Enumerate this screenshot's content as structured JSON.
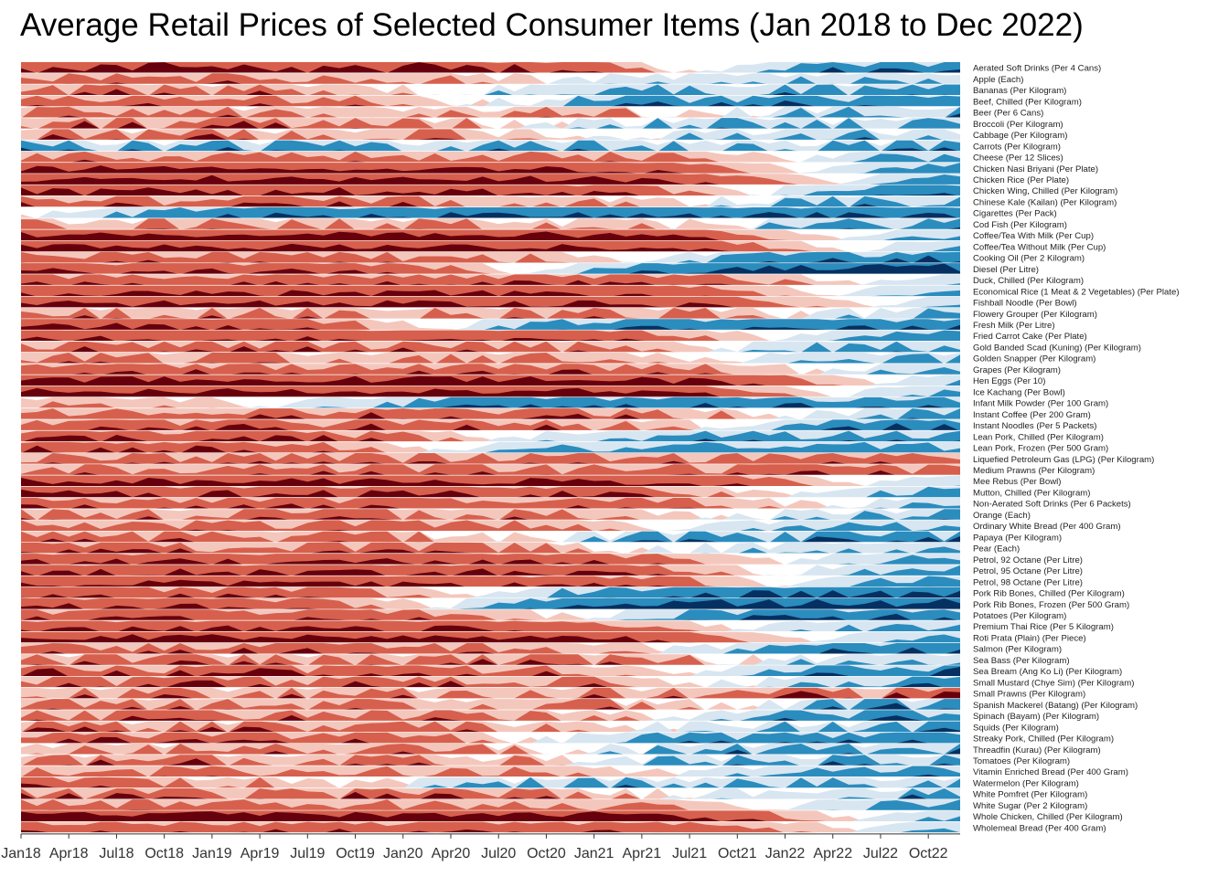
{
  "chart_data": {
    "type": "horizon",
    "title": "Average Retail Prices of Selected Consumer Items (Jan 2018 to Dec 2022)",
    "xlabel": "",
    "ylabel": "",
    "x_ticks": [
      "Jan18",
      "Apr18",
      "Jul18",
      "Oct18",
      "Jan19",
      "Apr19",
      "Jul19",
      "Oct19",
      "Jan20",
      "Apr20",
      "Jul20",
      "Oct20",
      "Jan21",
      "Apr21",
      "Jul21",
      "Oct21",
      "Jan22",
      "Apr22",
      "Jul22",
      "Oct22"
    ],
    "months": 60,
    "band_colors": {
      "neg3": "#67000d",
      "neg2": "#d6604d",
      "neg1": "#f4c7bd",
      "pos1": "#d8e6f1",
      "pos2": "#2b8cbe",
      "pos3": "#053061"
    },
    "series": [
      {
        "name": "Aerated Soft Drinks (Per 4 Cans)",
        "transition": 0.7,
        "start": 2.6,
        "end": 2.2,
        "noise": 0.6
      },
      {
        "name": "Apple (Each)",
        "transition": 0.55,
        "start": 1.8,
        "end": 1.2,
        "noise": 0.6
      },
      {
        "name": "Bananas (Per Kilogram)",
        "transition": 0.45,
        "start": 1.7,
        "end": 1.5,
        "noise": 0.9
      },
      {
        "name": "Beef, Chilled (Per Kilogram)",
        "transition": 0.5,
        "start": 2.0,
        "end": 2.1,
        "noise": 0.7
      },
      {
        "name": "Beer (Per 6 Cans)",
        "transition": 0.75,
        "start": 1.4,
        "end": 1.6,
        "noise": 0.9
      },
      {
        "name": "Broccoli (Per Kilogram)",
        "transition": 0.55,
        "start": 1.9,
        "end": 1.4,
        "noise": 1.0
      },
      {
        "name": "Cabbage (Per Kilogram)",
        "transition": 0.6,
        "start": 1.6,
        "end": 1.3,
        "noise": 1.0
      },
      {
        "name": "Carrots (Per Kilogram)",
        "transition": 0.1,
        "start": -1.6,
        "end": 1.4,
        "noise": 1.0
      },
      {
        "name": "Cheese (Per 12 Slices)",
        "transition": 0.82,
        "start": 1.7,
        "end": 1.8,
        "noise": 0.6
      },
      {
        "name": "Chicken Nasi Briyani (Per Plate)",
        "transition": 0.82,
        "start": 2.5,
        "end": 2.0,
        "noise": 0.3
      },
      {
        "name": "Chicken Rice (Per Plate)",
        "transition": 0.85,
        "start": 2.6,
        "end": 2.1,
        "noise": 0.3
      },
      {
        "name": "Chicken Wing, Chilled (Per Kilogram)",
        "transition": 0.78,
        "start": 2.4,
        "end": 2.4,
        "noise": 0.4
      },
      {
        "name": "Chinese Kale (Kailan) (Per Kilogram)",
        "transition": 0.72,
        "start": 1.8,
        "end": 1.8,
        "noise": 0.8
      },
      {
        "name": "Cigarettes (Per Pack)",
        "transition": 0.05,
        "start": 1.0,
        "end": 2.2,
        "noise": 0.4
      },
      {
        "name": "Cod Fish (Per Kilogram)",
        "transition": 0.75,
        "start": 1.3,
        "end": 1.8,
        "noise": 0.9
      },
      {
        "name": "Coffee/Tea With Milk (Per Cup)",
        "transition": 0.85,
        "start": 2.6,
        "end": 1.8,
        "noise": 0.3
      },
      {
        "name": "Coffee/Tea Without Milk (Per Cup)",
        "transition": 0.86,
        "start": 2.5,
        "end": 1.6,
        "noise": 0.3
      },
      {
        "name": "Cooking Oil (Per 2 Kilogram)",
        "transition": 0.68,
        "start": 1.8,
        "end": 2.2,
        "noise": 0.6
      },
      {
        "name": "Diesel (Per Litre)",
        "transition": 0.55,
        "start": 2.2,
        "end": 2.6,
        "noise": 0.4
      },
      {
        "name": "Duck, Chilled (Per Kilogram)",
        "transition": 0.88,
        "start": 2.0,
        "end": 1.4,
        "noise": 0.5
      },
      {
        "name": "Economical Rice (1 Meat & 2 Vegetables) (Per Plate)",
        "transition": 0.85,
        "start": 2.3,
        "end": 2.0,
        "noise": 0.3
      },
      {
        "name": "Fishball Noodle (Per Bowl)",
        "transition": 0.88,
        "start": 2.4,
        "end": 1.5,
        "noise": 0.3
      },
      {
        "name": "Flowery Grouper (Per Kilogram)",
        "transition": 0.86,
        "start": 1.6,
        "end": 2.0,
        "noise": 0.9
      },
      {
        "name": "Fresh Milk (Per Litre)",
        "transition": 0.44,
        "start": 2.3,
        "end": 2.1,
        "noise": 0.4
      },
      {
        "name": "Fried Carrot Cake (Per Plate)",
        "transition": 0.8,
        "start": 2.2,
        "end": 2.0,
        "noise": 0.3
      },
      {
        "name": "Gold Banded Scad (Kuning) (Per Kilogram)",
        "transition": 0.72,
        "start": 1.9,
        "end": 1.8,
        "noise": 0.7
      },
      {
        "name": "Golden Snapper (Per Kilogram)",
        "transition": 0.72,
        "start": 1.5,
        "end": 1.5,
        "noise": 0.8
      },
      {
        "name": "Grapes (Per Kilogram)",
        "transition": 0.85,
        "start": 2.0,
        "end": 1.8,
        "noise": 0.6
      },
      {
        "name": "Hen Eggs (Per 10)",
        "transition": 0.9,
        "start": 2.6,
        "end": 2.0,
        "noise": 0.3
      },
      {
        "name": "Ice Kachang (Per Bowl)",
        "transition": 0.85,
        "start": 2.6,
        "end": 1.8,
        "noise": 0.3
      },
      {
        "name": "Infant Milk Powder (Per 100 Gram)",
        "transition": 0.3,
        "start": 1.2,
        "end": 2.0,
        "noise": 0.5
      },
      {
        "name": "Instant Coffee (Per 200 Gram)",
        "transition": 0.82,
        "start": 2.0,
        "end": 2.0,
        "noise": 0.7
      },
      {
        "name": "Instant Noodles (Per 5 Packets)",
        "transition": 0.75,
        "start": 2.0,
        "end": 2.2,
        "noise": 0.7
      },
      {
        "name": "Lean Pork, Chilled (Per Kilogram)",
        "transition": 0.5,
        "start": 2.2,
        "end": 1.8,
        "noise": 0.6
      },
      {
        "name": "Lean Pork, Frozen (Per 500 Gram)",
        "transition": 0.42,
        "start": 2.3,
        "end": 1.6,
        "noise": 0.5
      },
      {
        "name": "Liquefied Petroleum Gas (LPG) (Per Kilogram)",
        "transition": 0.93,
        "start": 1.7,
        "end": -2.0,
        "noise": 0.6
      },
      {
        "name": "Medium Prawns (Per Kilogram)",
        "transition": 0.9,
        "start": 1.8,
        "end": -1.8,
        "noise": 0.7
      },
      {
        "name": "Mee Rebus (Per Bowl)",
        "transition": 0.88,
        "start": 2.5,
        "end": 1.8,
        "noise": 0.3
      },
      {
        "name": "Mutton, Chilled (Per Kilogram)",
        "transition": 0.8,
        "start": 2.3,
        "end": 1.8,
        "noise": 0.5
      },
      {
        "name": "Non-Aerated Soft Drinks (Per 6 Packets)",
        "transition": 0.85,
        "start": 2.0,
        "end": 1.8,
        "noise": 0.5
      },
      {
        "name": "Orange (Each)",
        "transition": 0.75,
        "start": 1.6,
        "end": 1.5,
        "noise": 0.8
      },
      {
        "name": "Ordinary White Bread (Per 400 Gram)",
        "transition": 0.7,
        "start": 1.7,
        "end": 1.5,
        "noise": 0.5
      },
      {
        "name": "Papaya (Per Kilogram)",
        "transition": 0.55,
        "start": 1.5,
        "end": 1.7,
        "noise": 0.9
      },
      {
        "name": "Pear (Each)",
        "transition": 0.65,
        "start": 1.8,
        "end": 1.2,
        "noise": 0.7
      },
      {
        "name": "Petrol, 92 Octane (Per Litre)",
        "transition": 0.8,
        "start": 2.2,
        "end": 1.8,
        "noise": 0.4
      },
      {
        "name": "Petrol, 95 Octane (Per Litre)",
        "transition": 0.8,
        "start": 2.3,
        "end": 1.9,
        "noise": 0.4
      },
      {
        "name": "Petrol, 98 Octane (Per Litre)",
        "transition": 0.8,
        "start": 2.3,
        "end": 1.9,
        "noise": 0.4
      },
      {
        "name": "Pork Rib Bones, Chilled (Per Kilogram)",
        "transition": 0.5,
        "start": 2.0,
        "end": 2.3,
        "noise": 0.5
      },
      {
        "name": "Pork Rib Bones, Frozen (Per 500 Gram)",
        "transition": 0.45,
        "start": 2.2,
        "end": 2.6,
        "noise": 0.4
      },
      {
        "name": "Potatoes (Per Kilogram)",
        "transition": 0.6,
        "start": 2.0,
        "end": 2.2,
        "noise": 0.5
      },
      {
        "name": "Premium Thai Rice (Per 5 Kilogram)",
        "transition": 0.75,
        "start": 2.2,
        "end": 1.6,
        "noise": 0.4
      },
      {
        "name": "Roti Prata (Plain) (Per Piece)",
        "transition": 0.83,
        "start": 2.5,
        "end": 1.8,
        "noise": 0.3
      },
      {
        "name": "Salmon (Per Kilogram)",
        "transition": 0.7,
        "start": 1.8,
        "end": 2.0,
        "noise": 0.8
      },
      {
        "name": "Sea Bass (Per Kilogram)",
        "transition": 0.78,
        "start": 1.7,
        "end": 1.6,
        "noise": 1.0
      },
      {
        "name": "Sea Bream (Ang Ko Li) (Per Kilogram)",
        "transition": 0.72,
        "start": 2.0,
        "end": 2.2,
        "noise": 0.8
      },
      {
        "name": "Small Mustard (Chye Sim) (Per Kilogram)",
        "transition": 0.75,
        "start": 1.9,
        "end": 2.0,
        "noise": 0.8
      },
      {
        "name": "Small Prawns (Per Kilogram)",
        "transition": 0.8,
        "start": 1.6,
        "end": -1.8,
        "noise": 1.0
      },
      {
        "name": "Spanish Mackerel (Batang) (Per Kilogram)",
        "transition": 0.75,
        "start": 1.7,
        "end": 1.8,
        "noise": 1.0
      },
      {
        "name": "Spinach (Bayam) (Per Kilogram)",
        "transition": 0.7,
        "start": 1.8,
        "end": 2.0,
        "noise": 0.8
      },
      {
        "name": "Squids (Per Kilogram)",
        "transition": 0.65,
        "start": 1.6,
        "end": 1.5,
        "noise": 1.0
      },
      {
        "name": "Streaky Pork, Chilled (Per Kilogram)",
        "transition": 0.55,
        "start": 2.0,
        "end": 1.9,
        "noise": 0.6
      },
      {
        "name": "Threadfin (Kurau) (Per Kilogram)",
        "transition": 0.6,
        "start": 1.5,
        "end": 1.6,
        "noise": 1.0
      },
      {
        "name": "Tomatoes (Per Kilogram)",
        "transition": 0.6,
        "start": 1.7,
        "end": 1.5,
        "noise": 1.0
      },
      {
        "name": "Vitamin Enriched Bread (Per 400 Gram)",
        "transition": 0.7,
        "start": 1.6,
        "end": 1.8,
        "noise": 0.6
      },
      {
        "name": "Watermelon (Per Kilogram)",
        "transition": 0.4,
        "start": 1.5,
        "end": 1.4,
        "noise": 1.0
      },
      {
        "name": "White Pomfret (Per Kilogram)",
        "transition": 0.7,
        "start": 1.8,
        "end": 1.6,
        "noise": 0.9
      },
      {
        "name": "White Sugar (Per 2 Kilogram)",
        "transition": 0.8,
        "start": 1.6,
        "end": 1.8,
        "noise": 0.5
      },
      {
        "name": "Whole Chicken, Chilled (Per Kilogram)",
        "transition": 0.88,
        "start": 2.7,
        "end": 2.0,
        "noise": 0.3
      },
      {
        "name": "Wholemeal Bread (Per 400 Gram)",
        "transition": 0.88,
        "start": 2.0,
        "end": 1.8,
        "noise": 0.4
      }
    ]
  }
}
